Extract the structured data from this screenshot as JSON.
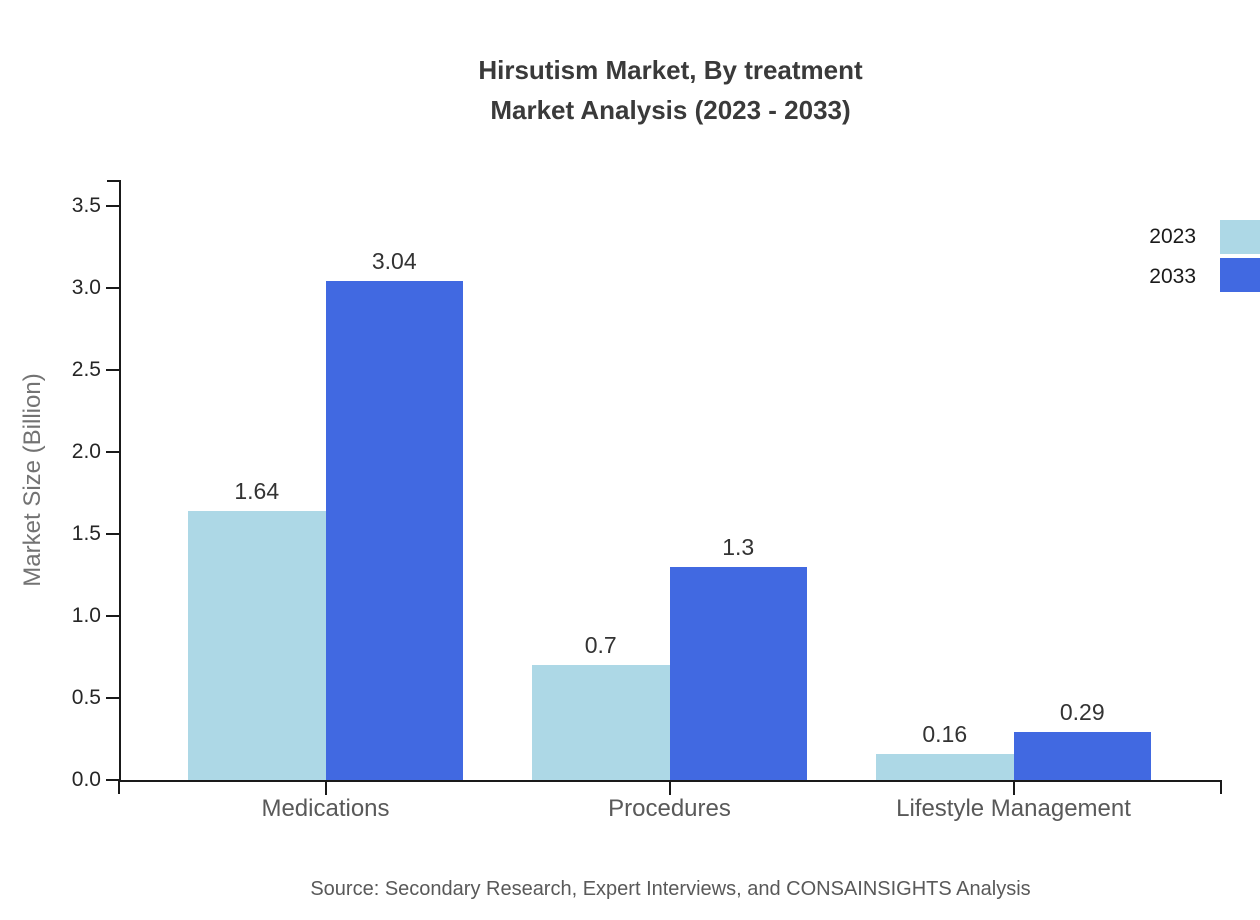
{
  "title": {
    "line1": "Hirsutism Market, By treatment",
    "line2": "Market Analysis (2023 - 2033)"
  },
  "chart_data": {
    "type": "bar",
    "title": "Hirsutism Market, By treatment — Market Analysis (2023 - 2033)",
    "categories": [
      "Medications",
      "Procedures",
      "Lifestyle Management"
    ],
    "series": [
      {
        "name": "2023",
        "color": "#ADD8E6",
        "values": [
          1.64,
          0.7,
          0.16
        ]
      },
      {
        "name": "2033",
        "color": "#4169E1",
        "values": [
          3.04,
          1.3,
          0.29
        ]
      }
    ],
    "xlabel": "",
    "ylabel": "Market Size (Billion)",
    "ylim": [
      0,
      3.5
    ],
    "ytick_step": 0.5,
    "yticks": [
      "0.0",
      "0.5",
      "1.0",
      "1.5",
      "2.0",
      "2.5",
      "3.0",
      "3.5"
    ],
    "grid": false,
    "legend_position": "top-right",
    "value_labels": true
  },
  "source": "Source: Secondary Research, Expert Interviews, and CONSAINSIGHTS Analysis",
  "colors": {
    "series_2023": "#ADD8E6",
    "series_2033": "#4169E1",
    "axis": "#1a1a1a",
    "title_text": "#3A3A3A",
    "category_text": "#595959",
    "tick_text": "#262626",
    "value_text": "#333333",
    "muted_text": "#737373"
  }
}
